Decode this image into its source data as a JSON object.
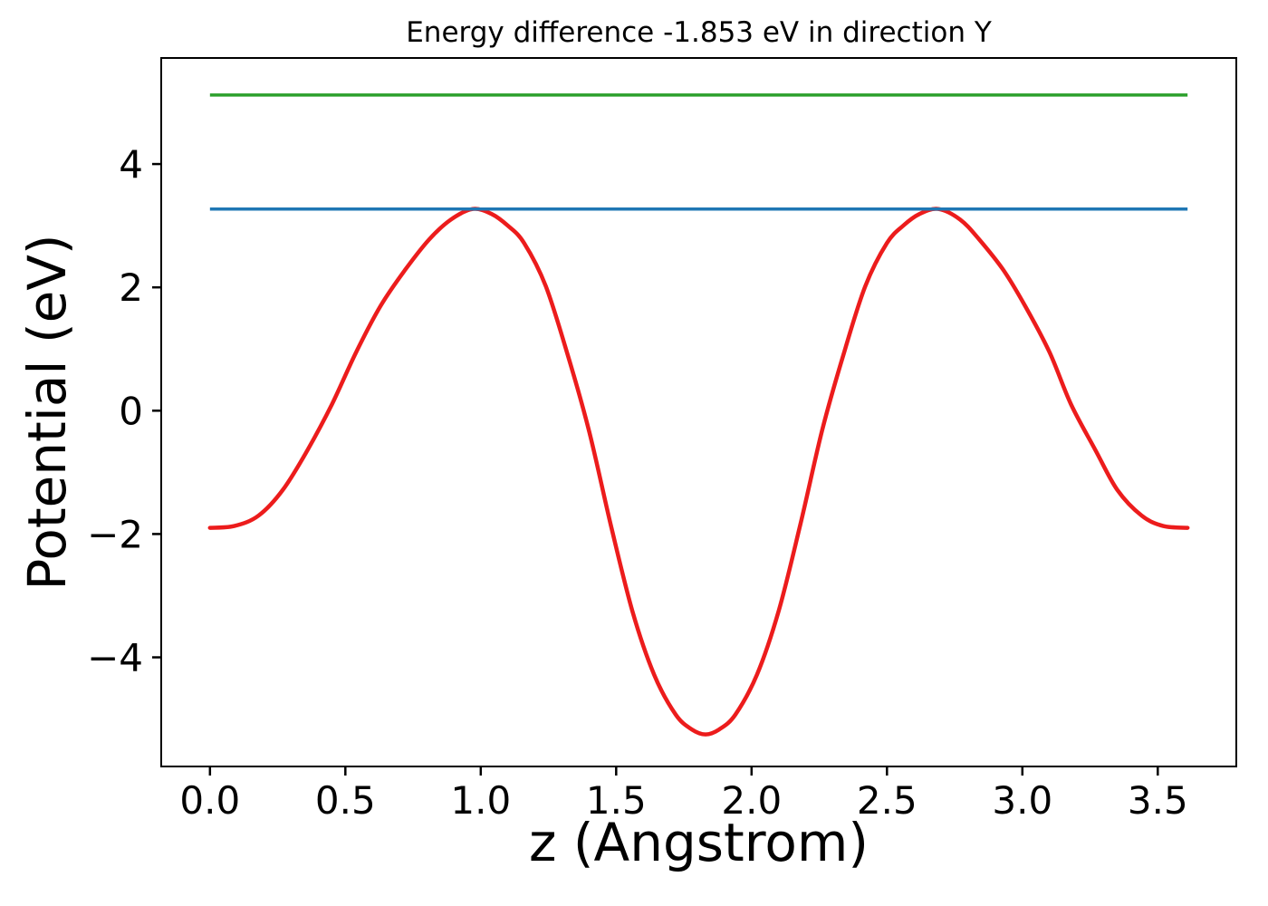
{
  "title": "Energy difference -1.853 eV in direction Y",
  "colors": {
    "background": "#ffffff",
    "axes": "#000000",
    "green_line": "#2ca02c",
    "blue_line": "#1f77b4",
    "red_curve": "#ec1c1c"
  },
  "chart_data": {
    "type": "line",
    "title": "Energy difference -1.853 eV in direction Y",
    "xlabel": "z (Angstrom)",
    "ylabel": "Potential (eV)",
    "xlim": [
      -0.18,
      3.79
    ],
    "ylim": [
      -5.77,
      5.72
    ],
    "grid": false,
    "legend": "none",
    "xticks": [
      0.0,
      0.5,
      1.0,
      1.5,
      2.0,
      2.5,
      3.0,
      3.5
    ],
    "xtick_labels": [
      "0.0",
      "0.5",
      "1.0",
      "1.5",
      "2.0",
      "2.5",
      "3.0",
      "3.5"
    ],
    "yticks": [
      -4,
      -2,
      0,
      2,
      4
    ],
    "ytick_labels": [
      "−4",
      "−2",
      "0",
      "2",
      "4"
    ],
    "energy_difference_ev": -1.853,
    "series": [
      {
        "name": "red-curve",
        "type": "line",
        "color": "#ec1c1c",
        "width": 4.5,
        "points": [
          [
            0.0,
            -1.9
          ],
          [
            0.09,
            -1.87
          ],
          [
            0.18,
            -1.7
          ],
          [
            0.27,
            -1.28
          ],
          [
            0.36,
            -0.64
          ],
          [
            0.45,
            0.1
          ],
          [
            0.54,
            0.95
          ],
          [
            0.63,
            1.7
          ],
          [
            0.72,
            2.28
          ],
          [
            0.81,
            2.78
          ],
          [
            0.89,
            3.1
          ],
          [
            0.97,
            3.27
          ],
          [
            1.04,
            3.19
          ],
          [
            1.1,
            3.0
          ],
          [
            1.16,
            2.72
          ],
          [
            1.24,
            2.02
          ],
          [
            1.32,
            0.92
          ],
          [
            1.4,
            -0.33
          ],
          [
            1.48,
            -1.85
          ],
          [
            1.56,
            -3.25
          ],
          [
            1.64,
            -4.28
          ],
          [
            1.72,
            -4.93
          ],
          [
            1.78,
            -5.17
          ],
          [
            1.83,
            -5.25
          ],
          [
            1.88,
            -5.17
          ],
          [
            1.94,
            -4.93
          ],
          [
            2.02,
            -4.28
          ],
          [
            2.1,
            -3.25
          ],
          [
            2.18,
            -1.85
          ],
          [
            2.26,
            -0.33
          ],
          [
            2.34,
            0.92
          ],
          [
            2.42,
            2.02
          ],
          [
            2.5,
            2.72
          ],
          [
            2.56,
            3.0
          ],
          [
            2.62,
            3.19
          ],
          [
            2.69,
            3.27
          ],
          [
            2.77,
            3.1
          ],
          [
            2.84,
            2.78
          ],
          [
            2.93,
            2.28
          ],
          [
            3.01,
            1.7
          ],
          [
            3.1,
            0.95
          ],
          [
            3.18,
            0.1
          ],
          [
            3.27,
            -0.64
          ],
          [
            3.35,
            -1.28
          ],
          [
            3.44,
            -1.7
          ],
          [
            3.52,
            -1.87
          ],
          [
            3.61,
            -1.9
          ]
        ]
      },
      {
        "name": "blue-hline",
        "type": "hline",
        "color": "#1f77b4",
        "width": 3.5,
        "y": 3.27,
        "x_start": 0.0,
        "x_end": 3.61
      },
      {
        "name": "green-hline",
        "type": "hline",
        "color": "#2ca02c",
        "width": 3.5,
        "y": 5.12,
        "x_start": 0.0,
        "x_end": 3.61
      }
    ]
  }
}
